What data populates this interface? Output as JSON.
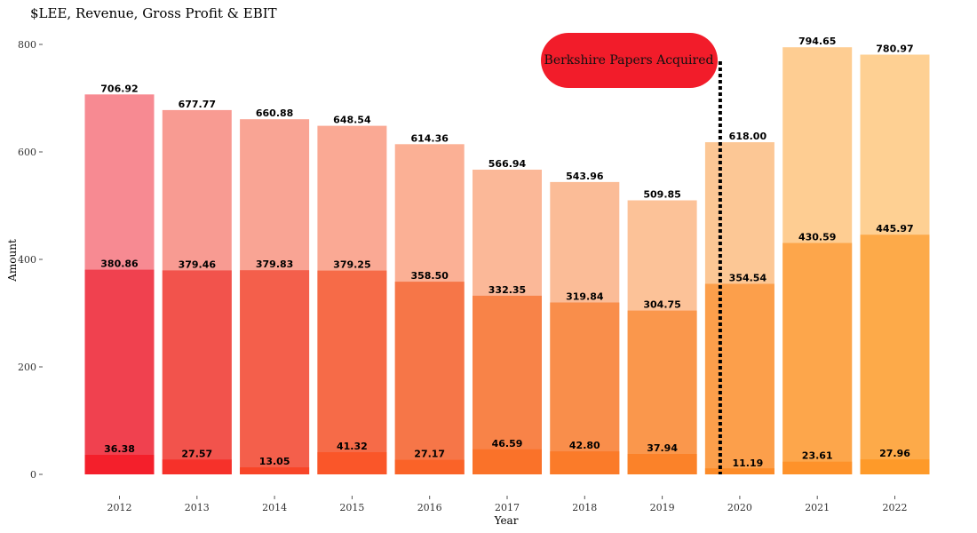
{
  "chart_data": {
    "type": "bar",
    "title": "$LEE, Revenue, Gross Profit & EBIT",
    "xlabel": "Year",
    "ylabel": "Amount",
    "ylim": [
      0,
      800
    ],
    "yticks": [
      0,
      200,
      400,
      600,
      800
    ],
    "grid": false,
    "categories": [
      "2012",
      "2013",
      "2014",
      "2015",
      "2016",
      "2017",
      "2018",
      "2019",
      "2020",
      "2021",
      "2022"
    ],
    "series": [
      {
        "values": [
          706.92,
          677.77,
          660.88,
          648.54,
          614.36,
          566.94,
          543.96,
          509.85,
          618.0,
          794.65,
          780.97
        ]
      },
      {
        "values": [
          380.86,
          379.46,
          379.83,
          379.25,
          358.5,
          332.35,
          319.84,
          304.75,
          354.54,
          430.59,
          445.97
        ]
      },
      {
        "values": [
          36.38,
          27.57,
          13.05,
          41.32,
          27.17,
          46.59,
          42.8,
          37.94,
          11.19,
          23.61,
          27.96
        ]
      }
    ],
    "data_labels": {
      "revenue": [
        "706.92",
        "677.77",
        "660.88",
        "648.54",
        "614.36",
        "566.94",
        "543.96",
        "509.85",
        "618.00",
        "794.65",
        "780.97"
      ],
      "gross_profit": [
        "380.86",
        "379.46",
        "379.83",
        "379.25",
        "358.50",
        "332.35",
        "319.84",
        "304.75",
        "354.54",
        "430.59",
        "445.97"
      ],
      "ebit": [
        "36.38",
        "27.57",
        "13.05",
        "41.32",
        "27.17",
        "46.59",
        "42.80",
        "37.94",
        "11.19",
        "23.61",
        "27.96"
      ]
    },
    "colors": {
      "revenue": [
        "#f78a92",
        "#f89b92",
        "#f9a494",
        "#faa994",
        "#fbb095",
        "#fbb898",
        "#fbbc97",
        "#fcc298",
        "#fcc795",
        "#fecd92",
        "#fed093"
      ],
      "gross_profit": [
        "#f0414f",
        "#f2534c",
        "#f45f4b",
        "#f66b48",
        "#f67648",
        "#f88348",
        "#f98e4b",
        "#fa974c",
        "#fc9f4b",
        "#fda64b",
        "#fdaa49"
      ],
      "ebit": [
        "#f41f2b",
        "#f6312a",
        "#f84528",
        "#fa5629",
        "#fa6328",
        "#fa7229",
        "#fb7b29",
        "#fb8229",
        "#fc8b28",
        "#fe922a",
        "#fe9a29"
      ]
    },
    "annotation": {
      "text": "Berkshire Papers Acquired",
      "x_between": [
        "2020"
      ],
      "color": "#f21c2a",
      "line_style": "dotted",
      "line_color": "#000000"
    }
  }
}
